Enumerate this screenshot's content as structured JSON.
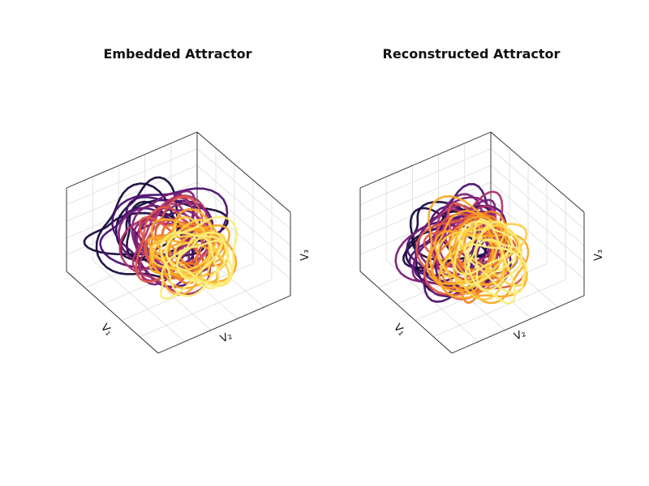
{
  "chart_data": [
    {
      "type": "line3d",
      "title": "Embedded Attractor",
      "xlabel": "V₁",
      "ylabel": "V₂",
      "zlabel": "V₃",
      "grid": true,
      "colormap": "inferno",
      "colors": [
        "#1a0a3d",
        "#4b1170",
        "#7b1f78",
        "#b0326b",
        "#de5a44",
        "#f57d25",
        "#f9a926",
        "#fcd045",
        "#fbed7a"
      ],
      "trajectory": {
        "loops": 40,
        "spread": 1.0,
        "center_drift": [
          0.55,
          -0.15,
          -0.35
        ]
      }
    },
    {
      "type": "line3d",
      "title": "Reconstructed Attractor",
      "xlabel": "V₁",
      "ylabel": "V₂",
      "zlabel": "V₃",
      "grid": true,
      "colormap": "inferno",
      "colors": [
        "#1a0a3d",
        "#4b1170",
        "#7b1f78",
        "#b0326b",
        "#de5a44",
        "#f57d25",
        "#f9a926",
        "#fcd045",
        "#fbed7a"
      ],
      "trajectory": {
        "loops": 44,
        "spread": 1.1,
        "center_drift": [
          0.35,
          -0.05,
          -0.15
        ]
      }
    }
  ]
}
